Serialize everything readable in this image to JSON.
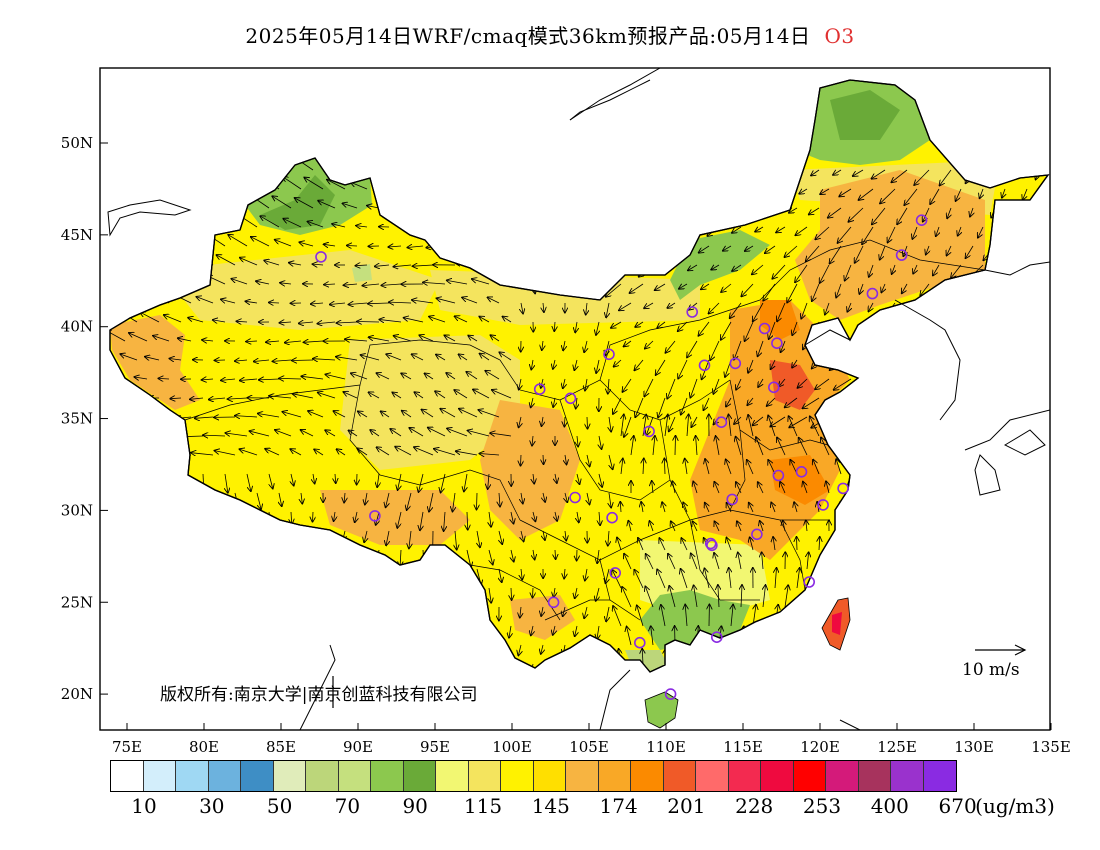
{
  "title": {
    "main": "2025年05月14日WRF/cmaq模式36km预报产品:05月14日",
    "pollutant": "O3"
  },
  "axes": {
    "lon_labels": [
      "75E",
      "80E",
      "85E",
      "90E",
      "95E",
      "100E",
      "105E",
      "110E",
      "115E",
      "120E",
      "125E",
      "130E",
      "135E"
    ],
    "lat_labels": [
      "50N",
      "45N",
      "40N",
      "35N",
      "30N",
      "25N",
      "20N"
    ]
  },
  "copyright": "版权所有:南京大学|南京创蓝科技有限公司",
  "wind_scale": {
    "label": "10 m/s"
  },
  "legend": {
    "unit": "(ug/m3)",
    "colors": [
      "#ffffff",
      "#d3eefb",
      "#9fd8f3",
      "#6cb2de",
      "#3e8ec5",
      "#e0ecba",
      "#bcd67a",
      "#c5e07e",
      "#8cc84e",
      "#6aaa38",
      "#f2f772",
      "#f4e45e",
      "#fff200",
      "#ffdf00",
      "#f7b441",
      "#f9a826",
      "#fb8a00",
      "#f05a28",
      "#ff6a6a",
      "#f32a50",
      "#ef0a3f",
      "#ff0000",
      "#d41a7a",
      "#a7335d",
      "#9a32cd",
      "#8a2be2"
    ],
    "labels": [
      "10",
      "30",
      "50",
      "70",
      "90",
      "115",
      "145",
      "174",
      "201",
      "228",
      "253",
      "400",
      "670"
    ]
  },
  "sites": [
    [
      87.6,
      43.8
    ],
    [
      91.1,
      29.7
    ],
    [
      101.8,
      36.6
    ],
    [
      103.8,
      36.1
    ],
    [
      106.3,
      38.5
    ],
    [
      104.1,
      30.7
    ],
    [
      106.5,
      29.6
    ],
    [
      102.7,
      25.0
    ],
    [
      106.7,
      26.6
    ],
    [
      108.9,
      34.3
    ],
    [
      111.7,
      40.8
    ],
    [
      112.5,
      37.9
    ],
    [
      114.5,
      38.0
    ],
    [
      116.4,
      39.9
    ],
    [
      117.2,
      39.1
    ],
    [
      117.0,
      36.7
    ],
    [
      113.6,
      34.8
    ],
    [
      114.3,
      30.6
    ],
    [
      112.9,
      28.2
    ],
    [
      115.9,
      28.7
    ],
    [
      117.3,
      31.9
    ],
    [
      118.8,
      32.1
    ],
    [
      121.5,
      31.2
    ],
    [
      120.2,
      30.3
    ],
    [
      119.3,
      26.1
    ],
    [
      113.3,
      23.1
    ],
    [
      108.3,
      22.8
    ],
    [
      110.3,
      20.0
    ],
    [
      123.4,
      41.8
    ],
    [
      125.3,
      43.9
    ],
    [
      126.6,
      45.8
    ],
    [
      112.98,
      28.1
    ]
  ]
}
